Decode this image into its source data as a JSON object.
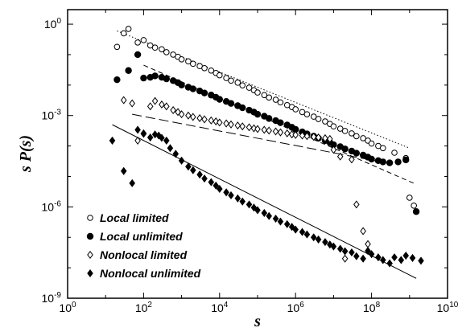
{
  "chart_data": {
    "type": "scatter",
    "xscale": "log",
    "yscale": "log",
    "xlim": [
      1,
      10000000000
    ],
    "ylim": [
      1e-09,
      3
    ],
    "xlabel": "s",
    "ylabel": "s P(s)",
    "legend_position": "bottom-left",
    "x_ticks": [
      {
        "value": 1,
        "base": "10",
        "exp": "0"
      },
      {
        "value": 100,
        "base": "10",
        "exp": "2"
      },
      {
        "value": 10000,
        "base": "10",
        "exp": "4"
      },
      {
        "value": 1000000,
        "base": "10",
        "exp": "6"
      },
      {
        "value": 100000000,
        "base": "10",
        "exp": "8"
      },
      {
        "value": 10000000000,
        "base": "10",
        "exp": "10"
      }
    ],
    "y_ticks": [
      {
        "value": 1,
        "base": "10",
        "exp": "0"
      },
      {
        "value": 0.001,
        "base": "10",
        "exp": "-3"
      },
      {
        "value": 1e-06,
        "base": "10",
        "exp": "-6"
      },
      {
        "value": 1e-09,
        "base": "10",
        "exp": "-9"
      }
    ],
    "series": [
      {
        "name": "Local limited",
        "marker": "open-circle",
        "x": [
          20,
          30,
          40,
          70,
          100,
          150,
          200,
          300,
          400,
          600,
          800,
          1000,
          1500,
          2000,
          3000,
          4000,
          6000,
          8000,
          10000,
          15000,
          20000,
          30000,
          40000,
          60000,
          80000,
          100000,
          150000,
          200000,
          300000,
          400000,
          600000,
          800000,
          1000000,
          1500000,
          2000000,
          3000000,
          4000000,
          6000000,
          8000000,
          10000000,
          15000000,
          20000000,
          30000000,
          40000000,
          60000000,
          80000000,
          100000000,
          150000000,
          200000000,
          400000000,
          800000000,
          1000000000,
          1300000000
        ],
        "y": [
          0.18,
          0.5,
          0.7,
          0.25,
          0.3,
          0.2,
          0.17,
          0.15,
          0.12,
          0.1,
          0.085,
          0.07,
          0.06,
          0.05,
          0.042,
          0.036,
          0.03,
          0.025,
          0.021,
          0.017,
          0.014,
          0.012,
          0.0098,
          0.0082,
          0.0068,
          0.0057,
          0.0047,
          0.0039,
          0.0033,
          0.0027,
          0.0022,
          0.0019,
          0.0016,
          0.0013,
          0.0011,
          0.00092,
          0.00077,
          0.00064,
          0.00053,
          0.00044,
          0.00037,
          0.00031,
          0.00026,
          0.00021,
          0.00018,
          0.00015,
          0.00012,
          0.0001,
          8.5e-05,
          6e-05,
          4e-05,
          2e-06,
          1.1e-06
        ]
      },
      {
        "name": "Local unlimited",
        "marker": "filled-circle",
        "x": [
          20,
          40,
          70,
          100,
          150,
          200,
          300,
          400,
          600,
          800,
          1000,
          1500,
          2000,
          3000,
          4000,
          6000,
          8000,
          10000,
          15000,
          20000,
          30000,
          40000,
          60000,
          80000,
          100000,
          150000,
          200000,
          300000,
          400000,
          600000,
          800000,
          1000000,
          1500000,
          2000000,
          3000000,
          4000000,
          6000000,
          8000000,
          10000000,
          15000000,
          20000000,
          30000000,
          40000000,
          60000000,
          80000000,
          100000000,
          150000000,
          200000000,
          300000000,
          500000000,
          800000000,
          1500000000
        ],
        "y": [
          0.015,
          0.03,
          0.1,
          0.017,
          0.018,
          0.02,
          0.018,
          0.016,
          0.014,
          0.012,
          0.01,
          0.0085,
          0.0075,
          0.0064,
          0.0055,
          0.0047,
          0.004,
          0.0034,
          0.0029,
          0.0025,
          0.0021,
          0.0018,
          0.0015,
          0.0013,
          0.0011,
          0.00095,
          0.0008,
          0.00068,
          0.00058,
          0.00049,
          0.00041,
          0.00035,
          0.00029,
          0.00025,
          0.00021,
          0.00018,
          0.00015,
          0.00013,
          0.00011,
          9.5e-05,
          8e-05,
          6.8e-05,
          5.8e-05,
          5e-05,
          4.3e-05,
          3.7e-05,
          3.3e-05,
          3e-05,
          2.8e-05,
          3e-05,
          3.5e-05,
          7e-07
        ]
      },
      {
        "name": "Nonlocal limited",
        "marker": "open-diamond",
        "x": [
          30,
          50,
          70,
          100,
          150,
          200,
          300,
          400,
          600,
          800,
          1000,
          1500,
          2000,
          3000,
          4000,
          6000,
          8000,
          10000,
          15000,
          20000,
          30000,
          40000,
          60000,
          80000,
          100000,
          150000,
          200000,
          300000,
          400000,
          600000,
          800000,
          1000000,
          1500000,
          2000000,
          3000000,
          4000000,
          6000000,
          8000000,
          10000000,
          15000000,
          20000000,
          30000000,
          40000000,
          60000000,
          80000000
        ],
        "y": [
          0.0032,
          0.0025,
          0.00015,
          0.00025,
          0.002,
          0.003,
          0.0023,
          0.002,
          0.0015,
          0.0013,
          0.0011,
          0.001,
          0.0009,
          0.00082,
          0.00075,
          0.00069,
          0.00064,
          0.00059,
          0.00055,
          0.00051,
          0.00047,
          0.00044,
          0.00041,
          0.00038,
          0.00036,
          0.00034,
          0.00032,
          0.0003,
          0.00028,
          0.00026,
          0.00024,
          0.00023,
          0.00022,
          0.00021,
          0.0002,
          0.00019,
          0.00018,
          0.00017,
          7.5e-05,
          4.5e-05,
          2e-08,
          3.6e-05,
          1.2e-06,
          1.6e-07,
          6e-08
        ]
      },
      {
        "name": "Nonlocal unlimited",
        "marker": "filled-diamond",
        "x": [
          15,
          30,
          50,
          70,
          100,
          150,
          200,
          250,
          300,
          400,
          500,
          700,
          1000,
          1500,
          2000,
          3000,
          4000,
          6000,
          8000,
          10000,
          15000,
          20000,
          30000,
          40000,
          60000,
          80000,
          100000,
          150000,
          200000,
          300000,
          400000,
          600000,
          800000,
          1000000,
          1500000,
          2000000,
          3000000,
          4000000,
          6000000,
          8000000,
          10000000,
          15000000,
          20000000,
          30000000,
          40000000,
          60000000,
          80000000,
          100000000,
          150000000,
          200000000,
          300000000,
          400000000,
          600000000,
          800000000,
          1200000000,
          2000000000
        ],
        "y": [
          0.00015,
          1.5e-05,
          6e-06,
          0.00034,
          0.00026,
          0.00019,
          0.00024,
          0.00022,
          0.000185,
          0.00015,
          8.5e-05,
          5.5e-05,
          3.3e-05,
          2.1e-05,
          1.6e-05,
          1.15e-05,
          8.5e-06,
          6.5e-06,
          5e-06,
          3.9e-06,
          3e-06,
          2.4e-06,
          1.9e-06,
          1.5e-06,
          1.2e-06,
          9.5e-07,
          7.8e-07,
          6.3e-07,
          5e-07,
          4.1e-07,
          3.3e-07,
          2.7e-07,
          2.2e-07,
          1.8e-07,
          1.5e-07,
          1.25e-07,
          1e-07,
          8.5e-08,
          7e-08,
          5.8e-08,
          5e-08,
          4.2e-08,
          3.5e-08,
          3.2e-08,
          2.4e-08,
          2e-08,
          3.6e-08,
          2.8e-08,
          2.2e-08,
          1.8e-08,
          1.4e-08,
          2.2e-08,
          1.8e-08,
          2.5e-08,
          2.1e-08,
          1.7e-08
        ]
      }
    ],
    "fit_lines": [
      {
        "style": "dotted",
        "x": [
          20,
          1000000000
        ],
        "y": [
          0.6,
          8.5e-05
        ]
      },
      {
        "style": "dash",
        "x": [
          100,
          1500000000
        ],
        "y": [
          0.045,
          5.5e-06
        ]
      },
      {
        "style": "longdash",
        "x": [
          50,
          300000000
        ],
        "y": [
          0.0011,
          2.65e-05
        ]
      },
      {
        "style": "solid",
        "x": [
          15,
          1500000000
        ],
        "y": [
          0.0005,
          4.5e-09
        ]
      }
    ]
  }
}
